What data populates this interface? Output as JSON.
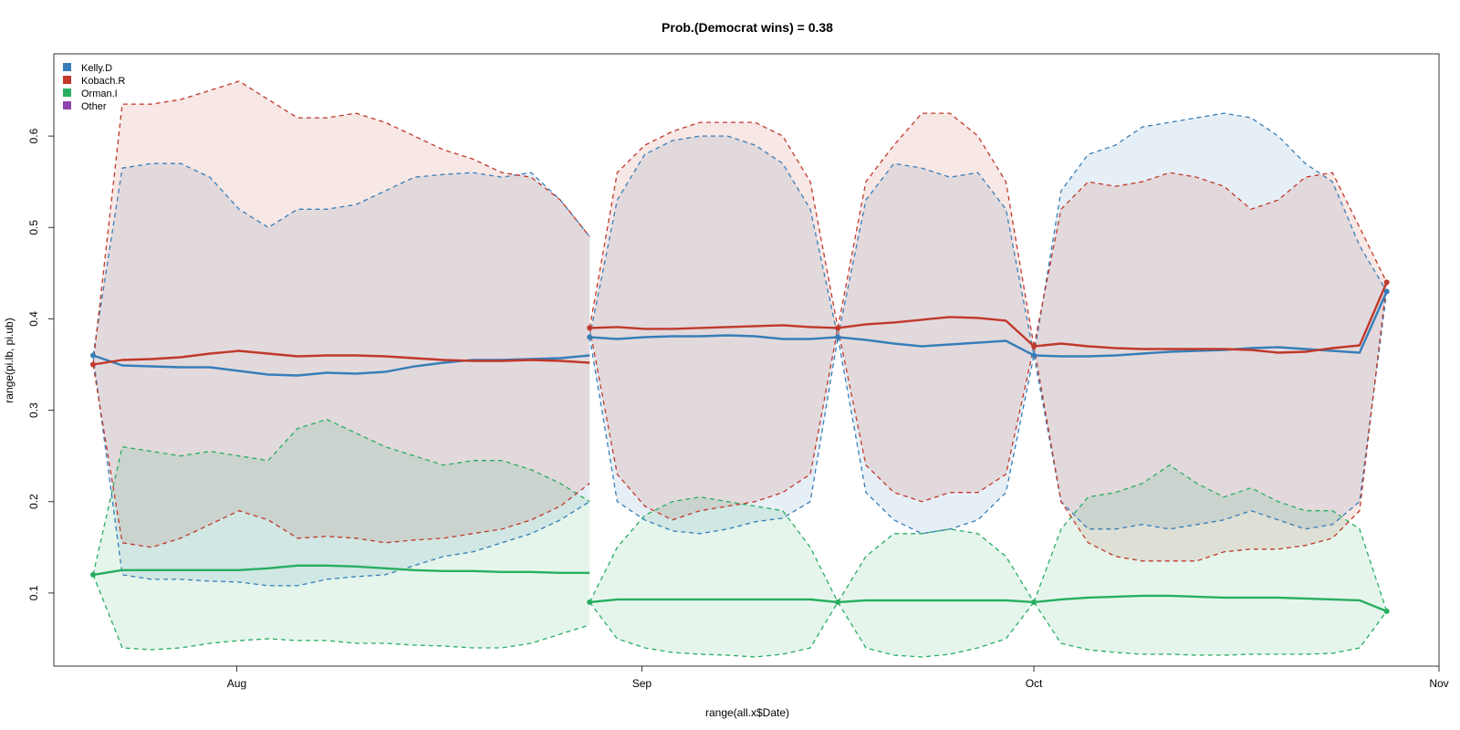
{
  "chart_data": {
    "type": "line",
    "title": "Prob.(Democrat wins) = 0.38",
    "xlabel": "range(all.x$Date)",
    "ylabel": "range(pi.lb, pi.ub)",
    "x_ticks": [
      "Aug",
      "Sep",
      "Oct",
      "Nov"
    ],
    "y_ticks": [
      "0.1",
      "0.2",
      "0.3",
      "0.4",
      "0.5",
      "0.6"
    ],
    "xlim": [
      "2014-07-18",
      "2014-11-01"
    ],
    "ylim": [
      0.02,
      0.69
    ],
    "legend_position": "top-left",
    "grid": false,
    "polls": [
      "2014-07-21",
      "2014-08-28",
      "2014-09-16",
      "2014-10-01",
      "2014-10-28"
    ],
    "series": [
      {
        "name": "Kelly.D",
        "color": "#377eb8",
        "points": [
          {
            "date": "2014-07-21",
            "value": 0.36
          },
          {
            "date": "2014-08-28",
            "value": 0.38
          },
          {
            "date": "2014-09-16",
            "value": 0.38
          },
          {
            "date": "2014-10-01",
            "value": 0.36
          },
          {
            "date": "2014-10-28",
            "value": 0.43
          }
        ],
        "segments": [
          {
            "start": "2014-07-21",
            "end": "2014-08-28",
            "mean": [
              0.36,
              0.349,
              0.348,
              0.347,
              0.347,
              0.343,
              0.339,
              0.338,
              0.341,
              0.34,
              0.342,
              0.348,
              0.352,
              0.355,
              0.355,
              0.356,
              0.357,
              0.36
            ],
            "lower": [
              0.36,
              0.12,
              0.115,
              0.115,
              0.113,
              0.112,
              0.108,
              0.108,
              0.115,
              0.118,
              0.12,
              0.13,
              0.14,
              0.145,
              0.155,
              0.165,
              0.18,
              0.2
            ],
            "upper": [
              0.36,
              0.565,
              0.57,
              0.57,
              0.555,
              0.52,
              0.5,
              0.52,
              0.52,
              0.525,
              0.54,
              0.555,
              0.558,
              0.56,
              0.555,
              0.56,
              0.53,
              0.49
            ]
          },
          {
            "start": "2014-08-28",
            "end": "2014-09-16",
            "mean": [
              0.38,
              0.378,
              0.38,
              0.381,
              0.381,
              0.382,
              0.381,
              0.378,
              0.378,
              0.38
            ],
            "lower": [
              0.38,
              0.2,
              0.18,
              0.168,
              0.165,
              0.17,
              0.178,
              0.182,
              0.2,
              0.38
            ],
            "upper": [
              0.38,
              0.53,
              0.58,
              0.595,
              0.6,
              0.6,
              0.59,
              0.57,
              0.52,
              0.38
            ]
          },
          {
            "start": "2014-09-16",
            "end": "2014-10-01",
            "mean": [
              0.38,
              0.377,
              0.373,
              0.37,
              0.372,
              0.374,
              0.376,
              0.36
            ],
            "lower": [
              0.38,
              0.21,
              0.18,
              0.165,
              0.17,
              0.18,
              0.21,
              0.36
            ],
            "upper": [
              0.38,
              0.53,
              0.57,
              0.565,
              0.555,
              0.56,
              0.52,
              0.36
            ]
          },
          {
            "start": "2014-10-01",
            "end": "2014-10-28",
            "mean": [
              0.36,
              0.359,
              0.359,
              0.36,
              0.362,
              0.364,
              0.365,
              0.366,
              0.368,
              0.369,
              0.367,
              0.365,
              0.363,
              0.43
            ],
            "lower": [
              0.36,
              0.2,
              0.17,
              0.17,
              0.175,
              0.17,
              0.175,
              0.18,
              0.19,
              0.18,
              0.17,
              0.175,
              0.2,
              0.43
            ],
            "upper": [
              0.36,
              0.54,
              0.58,
              0.59,
              0.61,
              0.615,
              0.62,
              0.625,
              0.62,
              0.6,
              0.57,
              0.55,
              0.48,
              0.43
            ]
          }
        ]
      },
      {
        "name": "Kobach.R",
        "color": "#c0392b",
        "points": [
          {
            "date": "2014-07-21",
            "value": 0.35
          },
          {
            "date": "2014-08-28",
            "value": 0.39
          },
          {
            "date": "2014-09-16",
            "value": 0.39
          },
          {
            "date": "2014-10-01",
            "value": 0.37
          },
          {
            "date": "2014-10-28",
            "value": 0.44
          }
        ],
        "segments": [
          {
            "start": "2014-07-21",
            "end": "2014-08-28",
            "mean": [
              0.35,
              0.355,
              0.356,
              0.358,
              0.362,
              0.365,
              0.362,
              0.359,
              0.36,
              0.36,
              0.359,
              0.357,
              0.355,
              0.354,
              0.354,
              0.355,
              0.354,
              0.352
            ],
            "lower": [
              0.35,
              0.155,
              0.15,
              0.16,
              0.175,
              0.19,
              0.18,
              0.16,
              0.162,
              0.16,
              0.155,
              0.158,
              0.16,
              0.165,
              0.17,
              0.18,
              0.195,
              0.22
            ],
            "upper": [
              0.35,
              0.635,
              0.635,
              0.64,
              0.65,
              0.66,
              0.64,
              0.62,
              0.62,
              0.625,
              0.615,
              0.6,
              0.585,
              0.575,
              0.56,
              0.555,
              0.53,
              0.49
            ]
          },
          {
            "start": "2014-08-28",
            "end": "2014-09-16",
            "mean": [
              0.39,
              0.391,
              0.389,
              0.389,
              0.39,
              0.391,
              0.392,
              0.393,
              0.391,
              0.39
            ],
            "lower": [
              0.39,
              0.23,
              0.195,
              0.18,
              0.19,
              0.195,
              0.2,
              0.21,
              0.23,
              0.39
            ],
            "upper": [
              0.39,
              0.56,
              0.59,
              0.605,
              0.615,
              0.615,
              0.615,
              0.6,
              0.55,
              0.39
            ]
          },
          {
            "start": "2014-09-16",
            "end": "2014-10-01",
            "mean": [
              0.39,
              0.394,
              0.396,
              0.399,
              0.402,
              0.401,
              0.398,
              0.37
            ],
            "lower": [
              0.39,
              0.24,
              0.21,
              0.2,
              0.21,
              0.21,
              0.23,
              0.37
            ],
            "upper": [
              0.39,
              0.55,
              0.59,
              0.625,
              0.625,
              0.6,
              0.55,
              0.37
            ]
          },
          {
            "start": "2014-10-01",
            "end": "2014-10-28",
            "mean": [
              0.37,
              0.373,
              0.37,
              0.368,
              0.367,
              0.367,
              0.367,
              0.367,
              0.366,
              0.363,
              0.364,
              0.368,
              0.371,
              0.44
            ],
            "lower": [
              0.37,
              0.2,
              0.155,
              0.14,
              0.135,
              0.135,
              0.135,
              0.145,
              0.148,
              0.148,
              0.152,
              0.16,
              0.19,
              0.44
            ],
            "upper": [
              0.37,
              0.52,
              0.55,
              0.545,
              0.55,
              0.56,
              0.555,
              0.545,
              0.52,
              0.53,
              0.555,
              0.56,
              0.5,
              0.44
            ]
          }
        ]
      },
      {
        "name": "Orman.I",
        "color": "#27ae60",
        "points": [
          {
            "date": "2014-07-21",
            "value": 0.12
          },
          {
            "date": "2014-08-28",
            "value": 0.09
          },
          {
            "date": "2014-09-16",
            "value": 0.09
          },
          {
            "date": "2014-10-01",
            "value": 0.09
          },
          {
            "date": "2014-10-28",
            "value": 0.08
          }
        ],
        "segments": [
          {
            "start": "2014-07-21",
            "end": "2014-08-28",
            "mean": [
              0.12,
              0.125,
              0.125,
              0.125,
              0.125,
              0.125,
              0.127,
              0.13,
              0.13,
              0.129,
              0.127,
              0.125,
              0.124,
              0.124,
              0.123,
              0.123,
              0.122,
              0.122
            ],
            "lower": [
              0.12,
              0.04,
              0.038,
              0.04,
              0.045,
              0.048,
              0.05,
              0.048,
              0.048,
              0.045,
              0.045,
              0.043,
              0.042,
              0.04,
              0.04,
              0.045,
              0.055,
              0.065
            ],
            "upper": [
              0.12,
              0.26,
              0.255,
              0.25,
              0.255,
              0.25,
              0.245,
              0.28,
              0.29,
              0.275,
              0.26,
              0.25,
              0.24,
              0.245,
              0.245,
              0.235,
              0.22,
              0.2
            ]
          },
          {
            "start": "2014-08-28",
            "end": "2014-09-16",
            "mean": [
              0.09,
              0.093,
              0.093,
              0.093,
              0.093,
              0.093,
              0.093,
              0.093,
              0.093,
              0.09
            ],
            "lower": [
              0.09,
              0.05,
              0.04,
              0.035,
              0.033,
              0.032,
              0.03,
              0.033,
              0.04,
              0.09
            ],
            "upper": [
              0.09,
              0.15,
              0.185,
              0.2,
              0.205,
              0.2,
              0.195,
              0.19,
              0.15,
              0.09
            ]
          },
          {
            "start": "2014-09-16",
            "end": "2014-10-01",
            "mean": [
              0.09,
              0.092,
              0.092,
              0.092,
              0.092,
              0.092,
              0.092,
              0.09
            ],
            "lower": [
              0.09,
              0.04,
              0.032,
              0.03,
              0.033,
              0.04,
              0.05,
              0.09
            ],
            "upper": [
              0.09,
              0.14,
              0.165,
              0.165,
              0.17,
              0.165,
              0.14,
              0.09
            ]
          },
          {
            "start": "2014-10-01",
            "end": "2014-10-28",
            "mean": [
              0.09,
              0.093,
              0.095,
              0.096,
              0.097,
              0.097,
              0.096,
              0.095,
              0.095,
              0.095,
              0.094,
              0.093,
              0.092,
              0.08
            ],
            "lower": [
              0.09,
              0.045,
              0.038,
              0.035,
              0.033,
              0.033,
              0.032,
              0.032,
              0.033,
              0.033,
              0.033,
              0.034,
              0.04,
              0.08
            ],
            "upper": [
              0.09,
              0.17,
              0.205,
              0.21,
              0.22,
              0.24,
              0.22,
              0.205,
              0.215,
              0.2,
              0.19,
              0.19,
              0.17,
              0.08
            ]
          }
        ]
      },
      {
        "name": "Other",
        "color": "#8e44ad",
        "points": [],
        "segments": []
      }
    ]
  }
}
